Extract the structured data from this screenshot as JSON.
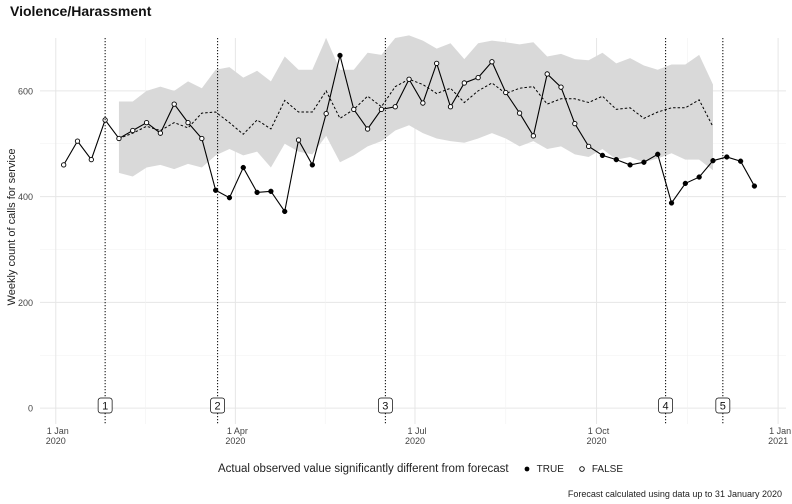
{
  "chart_data": {
    "type": "line",
    "title": "Violence/Harassment",
    "ylabel": "Weekly count of calls for service",
    "xlabel": "",
    "ylim": [
      -30,
      700
    ],
    "y_ticks": [
      0,
      200,
      400,
      600
    ],
    "x_range": [
      "2019-12-24",
      "2021-01-05"
    ],
    "x_ticks": [
      {
        "date": "2020-01-01",
        "label": [
          "1 Jan",
          "2020"
        ]
      },
      {
        "date": "2020-04-01",
        "label": [
          "1 Apr",
          "2020"
        ]
      },
      {
        "date": "2020-07-01",
        "label": [
          "1 Jul",
          "2020"
        ]
      },
      {
        "date": "2020-10-01",
        "label": [
          "1 Oct",
          "2020"
        ]
      },
      {
        "date": "2021-01-01",
        "label": [
          "1 Jan",
          "2021"
        ]
      }
    ],
    "grid": true,
    "legend_position": "bottom",
    "legend_title": "Actual observed value significantly different from forecast",
    "legend_entries": [
      {
        "label": "TRUE",
        "marker": "filled"
      },
      {
        "label": "FALSE",
        "marker": "open"
      }
    ],
    "weeks": [
      "2020-01-05",
      "2020-01-12",
      "2020-01-19",
      "2020-01-26",
      "2020-02-02",
      "2020-02-09",
      "2020-02-16",
      "2020-02-23",
      "2020-03-01",
      "2020-03-08",
      "2020-03-15",
      "2020-03-22",
      "2020-03-29",
      "2020-04-05",
      "2020-04-12",
      "2020-04-19",
      "2020-04-26",
      "2020-05-03",
      "2020-05-10",
      "2020-05-17",
      "2020-05-24",
      "2020-05-31",
      "2020-06-07",
      "2020-06-14",
      "2020-06-21",
      "2020-06-28",
      "2020-07-05",
      "2020-07-12",
      "2020-07-19",
      "2020-07-26",
      "2020-08-02",
      "2020-08-09",
      "2020-08-16",
      "2020-08-23",
      "2020-08-30",
      "2020-09-06",
      "2020-09-13",
      "2020-09-20",
      "2020-09-27",
      "2020-10-04",
      "2020-10-11",
      "2020-10-18",
      "2020-10-25",
      "2020-11-01",
      "2020-11-08",
      "2020-11-15",
      "2020-11-22",
      "2020-11-29",
      "2020-12-06",
      "2020-12-13",
      "2020-12-20"
    ],
    "series": [
      {
        "role": "actual",
        "values": [
          460,
          505,
          470,
          545,
          510,
          525,
          540,
          520,
          575,
          540,
          510,
          412,
          398,
          455,
          408,
          410,
          372,
          507,
          460,
          557,
          667,
          565,
          528,
          565,
          570,
          622,
          577,
          652,
          570,
          615,
          625,
          655,
          597,
          558,
          515,
          632,
          607,
          538,
          495,
          478,
          470,
          460,
          465,
          480,
          388,
          425,
          437,
          468,
          475,
          467,
          420
        ],
        "significant": [
          false,
          false,
          false,
          false,
          false,
          false,
          false,
          false,
          false,
          false,
          false,
          true,
          true,
          true,
          true,
          true,
          true,
          false,
          true,
          false,
          true,
          false,
          false,
          false,
          false,
          false,
          false,
          false,
          false,
          false,
          false,
          false,
          false,
          false,
          false,
          false,
          false,
          false,
          false,
          true,
          true,
          true,
          true,
          true,
          true,
          true,
          true,
          true,
          true,
          true,
          true
        ]
      },
      {
        "role": "forecast",
        "line": "dotted",
        "start_index": 4,
        "values": [
          510,
          520,
          533,
          525,
          540,
          530,
          558,
          560,
          540,
          518,
          545,
          528,
          582,
          560,
          560,
          600,
          548,
          565,
          590,
          570,
          608,
          622,
          612,
          595,
          605,
          578,
          600,
          615,
          595,
          605,
          608,
          575,
          585,
          585,
          578,
          590,
          565,
          568,
          548,
          560,
          568,
          568,
          583,
          532
        ],
        "lower": [
          445,
          438,
          455,
          460,
          452,
          462,
          455,
          478,
          490,
          478,
          485,
          455,
          500,
          485,
          480,
          515,
          465,
          478,
          495,
          505,
          525,
          535,
          520,
          510,
          505,
          502,
          510,
          520,
          510,
          495,
          505,
          490,
          495,
          480,
          475,
          490,
          470,
          475,
          465,
          472,
          482,
          470,
          470,
          450
        ],
        "upper": [
          580,
          580,
          600,
          608,
          600,
          618,
          605,
          640,
          645,
          625,
          638,
          618,
          665,
          640,
          640,
          700,
          640,
          640,
          672,
          668,
          700,
          705,
          695,
          680,
          690,
          660,
          690,
          695,
          692,
          688,
          692,
          665,
          670,
          660,
          658,
          672,
          652,
          662,
          648,
          640,
          650,
          650,
          668,
          612
        ]
      }
    ],
    "annotations": [
      {
        "label": "1",
        "date": "2020-01-26"
      },
      {
        "label": "2",
        "date": "2020-03-23"
      },
      {
        "label": "3",
        "date": "2020-06-16"
      },
      {
        "label": "4",
        "date": "2020-11-05"
      },
      {
        "label": "5",
        "date": "2020-12-04"
      }
    ],
    "colors": {
      "line": "#000000",
      "band": "#d9d9d9",
      "grid_major": "#e6e6e6",
      "grid_minor": "#f2f2f2"
    }
  },
  "footer": {
    "caption": "Forecast calculated using data up to 31 January 2020"
  }
}
